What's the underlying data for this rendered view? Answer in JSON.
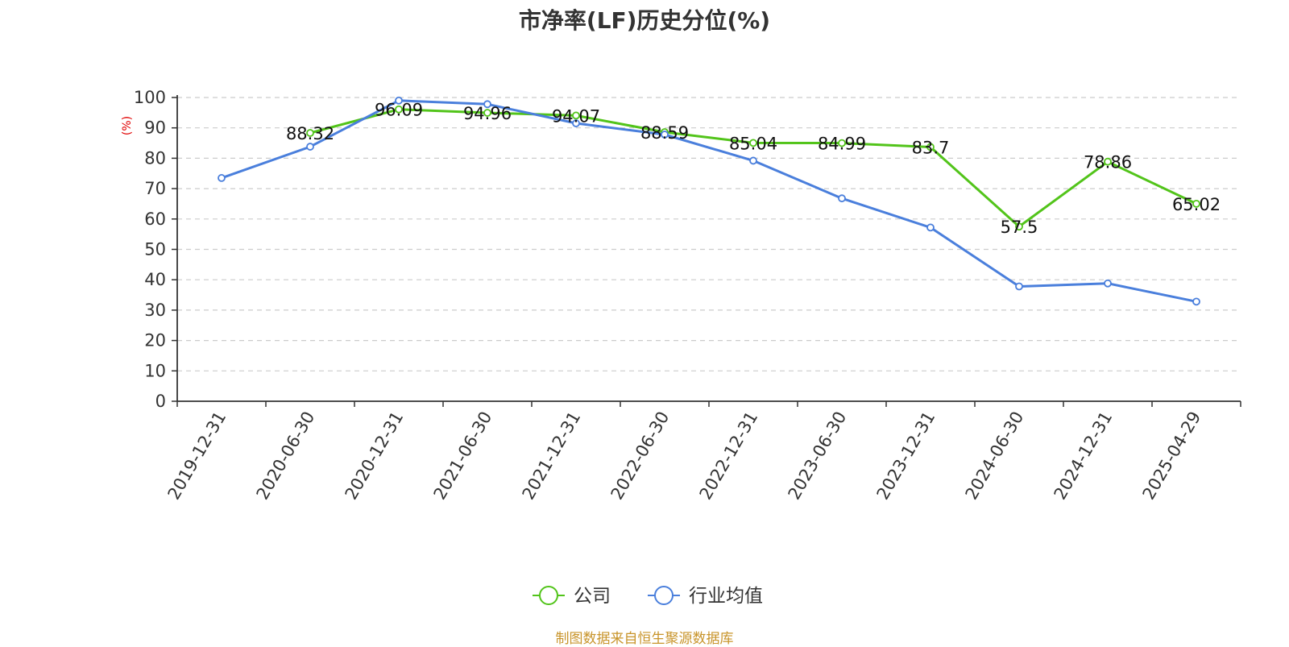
{
  "title": "市净率(LF)历史分位(%)",
  "source_note": "制图数据来自恒生聚源数据库",
  "colors": {
    "company": "#52c41a",
    "industry": "#4a7fdc",
    "grid": "#cccccc",
    "axis": "#333333",
    "unit": "#e00000",
    "source": "#c8942a"
  },
  "chart_data": {
    "type": "line",
    "title": "市净率(LF)历史分位(%)",
    "ylabel": "(%)",
    "ylim": [
      0,
      100
    ],
    "yticks": [
      0,
      10,
      20,
      30,
      40,
      50,
      60,
      70,
      80,
      90,
      100
    ],
    "grid": true,
    "legend_position": "bottom-center",
    "categories": [
      "2019-12-31",
      "2020-06-30",
      "2020-12-31",
      "2021-06-30",
      "2021-12-31",
      "2022-06-30",
      "2022-12-31",
      "2023-06-30",
      "2023-12-31",
      "2024-06-30",
      "2024-12-31",
      "2025-04-29"
    ],
    "series": [
      {
        "name": "公司",
        "color": "#52c41a",
        "values": [
          null,
          88.32,
          96.09,
          94.96,
          94.07,
          88.59,
          85.04,
          84.99,
          83.7,
          57.5,
          78.86,
          65.02
        ],
        "labels": [
          "",
          "88.32",
          "96.09",
          "94.96",
          "94.07",
          "88.59",
          "85.04",
          "84.99",
          "83.7",
          "57.5",
          "78.86",
          "65.02"
        ]
      },
      {
        "name": "行业均值",
        "color": "#4a7fdc",
        "values": [
          73.5,
          83.8,
          99.0,
          97.8,
          91.5,
          87.8,
          79.2,
          66.8,
          57.2,
          37.8,
          38.8,
          32.8
        ]
      }
    ]
  }
}
